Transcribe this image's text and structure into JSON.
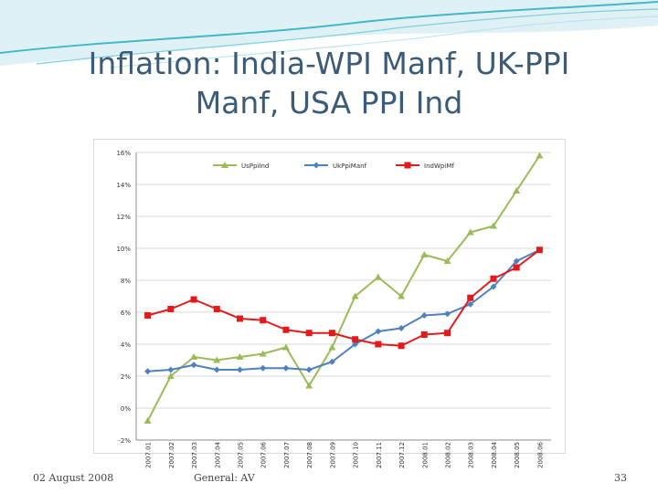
{
  "slide": {
    "title_line1": "Inflation: India-WPI Manf, UK-PPI",
    "title_line2": "Manf, USA PPI Ind",
    "footer_date": "02 August 2008",
    "footer_center": "General: AV",
    "page_number": "33"
  },
  "colors": {
    "title": "#3b5b76",
    "usa": "#9bbb59",
    "uk": "#4f81bd",
    "india": "#e31a1c",
    "accent_top": "#3fb9cc"
  },
  "chart_data": {
    "type": "line",
    "title": "",
    "xlabel": "",
    "ylabel": "",
    "ylim": [
      -2,
      16
    ],
    "yticks": [
      -2,
      0,
      2,
      4,
      6,
      8,
      10,
      12,
      14,
      16
    ],
    "ytick_labels": [
      "-2%",
      "0%",
      "2%",
      "4%",
      "6%",
      "8%",
      "10%",
      "12%",
      "14%",
      "16%"
    ],
    "grid": "horizontal",
    "legend_position": "top",
    "categories": [
      "2007.01",
      "2007.02",
      "2007.03",
      "2007.04",
      "2007.05",
      "2007.06",
      "2007.07",
      "2007.08",
      "2007.09",
      "2007.10",
      "2007.11",
      "2007.12",
      "2008.01",
      "2008.02",
      "2008.03",
      "2008.04",
      "2008.05",
      "2008.06"
    ],
    "series": [
      {
        "name": "UsPpiInd",
        "color": "#9bbb59",
        "marker": "triangle",
        "values": [
          -0.8,
          2.0,
          3.2,
          3.0,
          3.2,
          3.4,
          3.8,
          1.4,
          3.8,
          7.0,
          8.2,
          7.0,
          9.6,
          9.2,
          11.0,
          11.4,
          13.6,
          15.8
        ]
      },
      {
        "name": "UkPpiManf",
        "color": "#4f81bd",
        "marker": "diamond",
        "values": [
          2.3,
          2.4,
          2.7,
          2.4,
          2.4,
          2.5,
          2.5,
          2.4,
          2.9,
          4.0,
          4.8,
          5.0,
          5.8,
          5.9,
          6.5,
          7.6,
          9.2,
          9.9
        ]
      },
      {
        "name": "IndWpiMf",
        "color": "#e31a1c",
        "marker": "square",
        "values": [
          5.8,
          6.2,
          6.8,
          6.2,
          5.6,
          5.5,
          4.9,
          4.7,
          4.7,
          4.3,
          4.0,
          3.9,
          4.6,
          4.7,
          6.9,
          8.1,
          8.8,
          9.9
        ]
      }
    ]
  }
}
